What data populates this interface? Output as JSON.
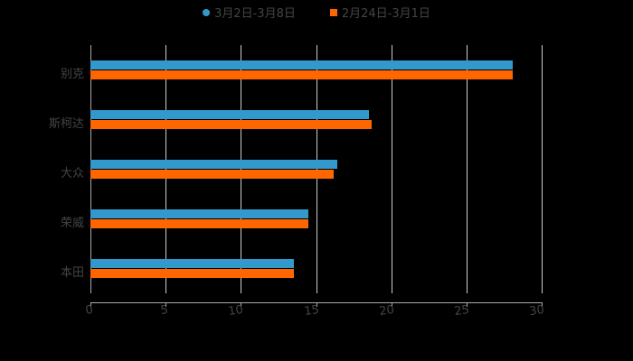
{
  "legend": [
    {
      "label": "3月2日-3月8日",
      "color": "#3399cc",
      "shape": "circle"
    },
    {
      "label": "2月24日-3月1日",
      "color": "#ff6600",
      "shape": "square"
    }
  ],
  "chart_data": {
    "type": "bar",
    "orientation": "horizontal",
    "title": "",
    "xlabel": "",
    "ylabel": "",
    "categories": [
      "别克",
      "斯柯达",
      "大众",
      "荣威",
      "本田"
    ],
    "series": [
      {
        "name": "3月2日-3月8日",
        "color": "#3399cc",
        "values": [
          28.1,
          18.5,
          16.4,
          14.5,
          13.5
        ]
      },
      {
        "name": "2月24日-3月1日",
        "color": "#ff6600",
        "values": [
          28.1,
          18.7,
          16.2,
          14.5,
          13.5
        ]
      }
    ],
    "xlim": [
      0,
      30
    ],
    "xticks": [
      "0",
      "5",
      "10",
      "15",
      "20",
      "25",
      "30"
    ],
    "grid": "vertical",
    "legend_position": "top"
  }
}
